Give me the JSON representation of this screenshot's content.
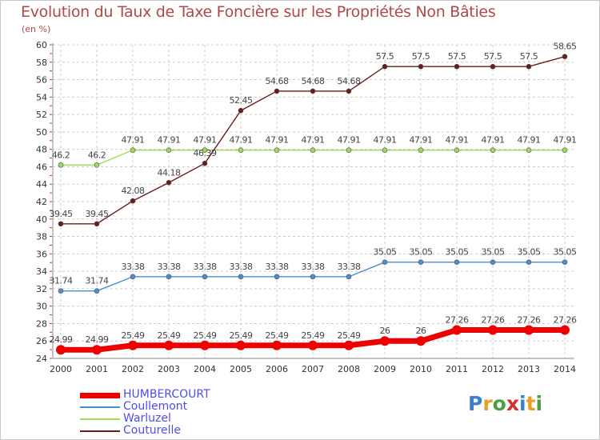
{
  "title": "Evolution du Taux de Taxe Foncière sur les Propriétés Non Bâties",
  "unit_label": "(en %)",
  "logo_text": "Proxiti",
  "colors": {
    "HUMBERCOURT": "#ee0000",
    "Coullemont": "#4a8ed0",
    "Warluzel": "#99dd55",
    "Couturelle": "#6b1a1a",
    "grid": "#cccccc",
    "axis_text": "#333333",
    "title": "#b04848"
  },
  "chart_data": {
    "type": "line",
    "title": "Evolution du Taux de Taxe Foncière sur les Propriétés Non Bâties",
    "ylabel": "(en %)",
    "xlabel": "",
    "ylim": [
      24,
      60
    ],
    "yticks": [
      24,
      26,
      28,
      30,
      32,
      34,
      36,
      38,
      40,
      42,
      44,
      46,
      48,
      50,
      52,
      54,
      56,
      58,
      60
    ],
    "grid": true,
    "legend_position": "bottom-left",
    "categories": [
      "2000",
      "2001",
      "2002",
      "2003",
      "2004",
      "2005",
      "2006",
      "2007",
      "2008",
      "2009",
      "2010",
      "2011",
      "2012",
      "2013",
      "2014"
    ],
    "series": [
      {
        "name": "HUMBERCOURT",
        "values": [
          24.99,
          24.99,
          25.49,
          25.49,
          25.49,
          25.49,
          25.49,
          25.49,
          25.49,
          26,
          26,
          27.26,
          27.26,
          27.26,
          27.26
        ]
      },
      {
        "name": "Coullemont",
        "values": [
          31.74,
          31.74,
          33.38,
          33.38,
          33.38,
          33.38,
          33.38,
          33.38,
          33.38,
          35.05,
          35.05,
          35.05,
          35.05,
          35.05,
          35.05
        ]
      },
      {
        "name": "Warluzel",
        "values": [
          46.2,
          46.2,
          47.91,
          47.91,
          47.91,
          47.91,
          47.91,
          47.91,
          47.91,
          47.91,
          47.91,
          47.91,
          47.91,
          47.91,
          47.91
        ]
      },
      {
        "name": "Couturelle",
        "values": [
          39.45,
          39.45,
          42.08,
          44.18,
          46.39,
          52.45,
          54.68,
          54.68,
          54.68,
          57.5,
          57.5,
          57.5,
          57.5,
          57.5,
          58.65
        ]
      }
    ]
  }
}
